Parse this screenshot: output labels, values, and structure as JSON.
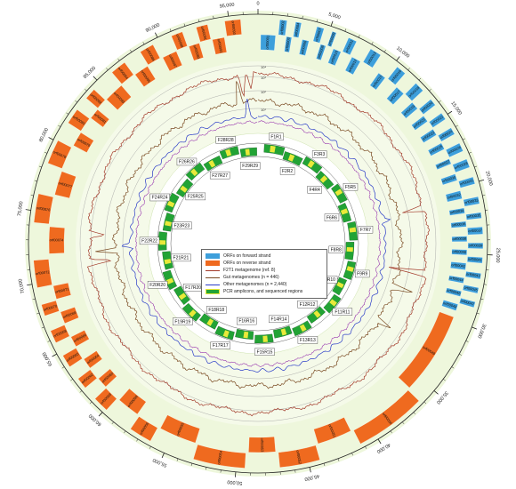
{
  "colors": {
    "background_ring": "#eef7dc",
    "inner_ring": "#f5fae9",
    "forward": "#3d9fdb",
    "reverse": "#ef6a1f",
    "f2t1": "#a33a2a",
    "gut": "#7a4a22",
    "other": "#2a3cc8",
    "purple": "#9b3db0",
    "pcr": "#22a335",
    "pcr_seq": "#e9e93a"
  },
  "genome": {
    "length": 97000,
    "major_ticks": [
      {
        "pos": 0,
        "label": "0"
      },
      {
        "pos": 5000,
        "label": "5,000"
      },
      {
        "pos": 10000,
        "label": "10,000"
      },
      {
        "pos": 15000,
        "label": "15,000"
      },
      {
        "pos": 20000,
        "label": "20,000"
      },
      {
        "pos": 25000,
        "label": "25,000"
      },
      {
        "pos": 30000,
        "label": "30,000"
      },
      {
        "pos": 35000,
        "label": "35,000"
      },
      {
        "pos": 40000,
        "label": "40,000"
      },
      {
        "pos": 45000,
        "label": "45,000"
      },
      {
        "pos": 50000,
        "label": "50,000"
      },
      {
        "pos": 55000,
        "label": "55,000"
      },
      {
        "pos": 60000,
        "label": "60,000"
      },
      {
        "pos": 65000,
        "label": "65,000"
      },
      {
        "pos": 70000,
        "label": "70,000"
      },
      {
        "pos": 75000,
        "label": "75,000"
      },
      {
        "pos": 80000,
        "label": "80,000"
      },
      {
        "pos": 85000,
        "label": "85,000"
      },
      {
        "pos": 90000,
        "label": "90,000"
      },
      {
        "pos": 95000,
        "label": "95,000"
      }
    ]
  },
  "orfs_forward": [
    {
      "name": "orf00001",
      "start": 200,
      "end": 1300,
      "lane": 0
    },
    {
      "name": "orf00002",
      "start": 1500,
      "end": 2000,
      "lane": 1
    },
    {
      "name": "orf00003",
      "start": 2100,
      "end": 2500,
      "lane": 0
    },
    {
      "name": "orf00004",
      "start": 2600,
      "end": 3000,
      "lane": 1
    },
    {
      "name": "orf00006",
      "start": 3300,
      "end": 3800,
      "lane": 0
    },
    {
      "name": "orf00007",
      "start": 4100,
      "end": 4600,
      "lane": 1
    },
    {
      "name": "orf00008",
      "start": 4700,
      "end": 5100,
      "lane": 0
    },
    {
      "name": "orf00009",
      "start": 5200,
      "end": 5500,
      "lane": 1
    },
    {
      "name": "orf00010",
      "start": 5700,
      "end": 6300,
      "lane": 0
    },
    {
      "name": "orf00011",
      "start": 6400,
      "end": 7000,
      "lane": 1
    },
    {
      "name": "orf00012",
      "start": 7200,
      "end": 7900,
      "lane": 0
    },
    {
      "name": "orf00013",
      "start": 8100,
      "end": 8900,
      "lane": 1
    },
    {
      "name": "orf00015",
      "start": 9500,
      "end": 10100,
      "lane": 0
    },
    {
      "name": "orf00016",
      "start": 10300,
      "end": 11000,
      "lane": 1
    },
    {
      "name": "orf00017",
      "start": 11200,
      "end": 11900,
      "lane": 0
    },
    {
      "name": "orf00018",
      "start": 12000,
      "end": 12700,
      "lane": 1
    },
    {
      "name": "orf00019",
      "start": 12800,
      "end": 13400,
      "lane": 0
    },
    {
      "name": "orf00020",
      "start": 13500,
      "end": 14000,
      "lane": 1
    },
    {
      "name": "orf00021",
      "start": 14100,
      "end": 14600,
      "lane": 0
    },
    {
      "name": "orf00022",
      "start": 14700,
      "end": 15200,
      "lane": 1
    },
    {
      "name": "orf00023",
      "start": 15300,
      "end": 15800,
      "lane": 0
    },
    {
      "name": "orf00024",
      "start": 15900,
      "end": 16400,
      "lane": 1
    },
    {
      "name": "orf00025",
      "start": 16500,
      "end": 17000,
      "lane": 0
    },
    {
      "name": "orf00026",
      "start": 17100,
      "end": 17700,
      "lane": 1
    },
    {
      "name": "orf00027",
      "start": 17800,
      "end": 18200,
      "lane": 0
    },
    {
      "name": "orf00028",
      "start": 18300,
      "end": 18900,
      "lane": 1
    },
    {
      "name": "orf00030",
      "start": 19000,
      "end": 19500,
      "lane": 0
    },
    {
      "name": "orf00031",
      "start": 19600,
      "end": 20100,
      "lane": 1
    },
    {
      "name": "orf00032",
      "start": 20300,
      "end": 20900,
      "lane": 0
    },
    {
      "name": "orf00033",
      "start": 21000,
      "end": 21500,
      "lane": 1
    },
    {
      "name": "orf00034",
      "start": 21600,
      "end": 22000,
      "lane": 0
    },
    {
      "name": "orf00035",
      "start": 22100,
      "end": 22500,
      "lane": 1
    },
    {
      "name": "orf00036",
      "start": 22600,
      "end": 23000,
      "lane": 0
    },
    {
      "name": "orf00037",
      "start": 23100,
      "end": 23600,
      "lane": 1
    },
    {
      "name": "orf00038",
      "start": 23700,
      "end": 24100,
      "lane": 0
    },
    {
      "name": "orf00039",
      "start": 24200,
      "end": 24600,
      "lane": 1
    },
    {
      "name": "orf00040",
      "start": 24700,
      "end": 25100,
      "lane": 0
    },
    {
      "name": "orf00041",
      "start": 25200,
      "end": 25600,
      "lane": 1
    },
    {
      "name": "orf00042",
      "start": 25700,
      "end": 26200,
      "lane": 0
    },
    {
      "name": "orf00043",
      "start": 26300,
      "end": 26700,
      "lane": 1
    },
    {
      "name": "orf00044",
      "start": 26800,
      "end": 27200,
      "lane": 0
    },
    {
      "name": "orf00045",
      "start": 27300,
      "end": 27700,
      "lane": 1
    },
    {
      "name": "orf00046",
      "start": 27800,
      "end": 28200,
      "lane": 0
    },
    {
      "name": "orf00047",
      "start": 28300,
      "end": 28700,
      "lane": 1
    },
    {
      "name": "orf00048",
      "start": 28800,
      "end": 29300,
      "lane": 0
    }
  ],
  "orfs_reverse": [
    {
      "name": "orf00049",
      "start": 29800,
      "end": 36000,
      "lane": 0
    },
    {
      "name": "orf00050",
      "start": 36200,
      "end": 41200,
      "lane": 1
    },
    {
      "name": "orf00051",
      "start": 41400,
      "end": 44000,
      "lane": 0
    },
    {
      "name": "orf00052",
      "start": 44200,
      "end": 47000,
      "lane": 1
    },
    {
      "name": "orf00053",
      "start": 47200,
      "end": 49200,
      "lane": 0
    },
    {
      "name": "orf00054",
      "start": 49400,
      "end": 53000,
      "lane": 1
    },
    {
      "name": "orf00055",
      "start": 53200,
      "end": 56000,
      "lane": 0
    },
    {
      "name": "orf00056",
      "start": 56200,
      "end": 57800,
      "lane": 1
    },
    {
      "name": "orf00058",
      "start": 58000,
      "end": 59700,
      "lane": 0
    },
    {
      "name": "orf00059",
      "start": 59900,
      "end": 61000,
      "lane": 1
    },
    {
      "name": "orf00060",
      "start": 61100,
      "end": 61900,
      "lane": 0
    },
    {
      "name": "orf00062",
      "start": 62000,
      "end": 62800,
      "lane": 1
    },
    {
      "name": "orf00064",
      "start": 62900,
      "end": 63700,
      "lane": 0
    },
    {
      "name": "orf00065",
      "start": 63800,
      "end": 64700,
      "lane": 1
    },
    {
      "name": "orf00066",
      "start": 64800,
      "end": 65600,
      "lane": 0
    },
    {
      "name": "orf00068",
      "start": 65700,
      "end": 66600,
      "lane": 1
    },
    {
      "name": "orf00069",
      "start": 66700,
      "end": 67600,
      "lane": 0
    },
    {
      "name": "orf00070",
      "start": 67700,
      "end": 68500,
      "lane": 1
    },
    {
      "name": "orf00071",
      "start": 68600,
      "end": 69600,
      "lane": 0
    },
    {
      "name": "orf00072",
      "start": 69700,
      "end": 71600,
      "lane": 1
    },
    {
      "name": "orf00074",
      "start": 72000,
      "end": 74000,
      "lane": 0
    },
    {
      "name": "orf00076",
      "start": 74200,
      "end": 76200,
      "lane": 1
    },
    {
      "name": "orf00077",
      "start": 76400,
      "end": 78200,
      "lane": 0
    },
    {
      "name": "orf00078",
      "start": 78400,
      "end": 80100,
      "lane": 1
    },
    {
      "name": "orf00079",
      "start": 80300,
      "end": 81400,
      "lane": 0
    },
    {
      "name": "orf00080",
      "start": 81500,
      "end": 82600,
      "lane": 1
    },
    {
      "name": "orf00081",
      "start": 82700,
      "end": 83500,
      "lane": 0
    },
    {
      "name": "orf00082",
      "start": 83600,
      "end": 84400,
      "lane": 1
    },
    {
      "name": "orf00083",
      "start": 84500,
      "end": 86000,
      "lane": 0
    },
    {
      "name": "orf00084",
      "start": 86100,
      "end": 87200,
      "lane": 1
    },
    {
      "name": "orf00085",
      "start": 87300,
      "end": 88400,
      "lane": 0
    },
    {
      "name": "orf00086",
      "start": 88500,
      "end": 89500,
      "lane": 1
    },
    {
      "name": "orf00087",
      "start": 89700,
      "end": 90800,
      "lane": 0
    },
    {
      "name": "orf00088",
      "start": 90900,
      "end": 91700,
      "lane": 1
    },
    {
      "name": "orf00089",
      "start": 91800,
      "end": 92600,
      "lane": 0
    },
    {
      "name": "orf00091",
      "start": 92700,
      "end": 93500,
      "lane": 1
    },
    {
      "name": "orf00092",
      "start": 93600,
      "end": 94500,
      "lane": 0
    },
    {
      "name": "orf00093",
      "start": 94700,
      "end": 95800,
      "lane": 1
    }
  ],
  "coverage_scale": [
    "10⁴",
    "10³",
    "10²",
    "10¹"
  ],
  "amplicons": [
    {
      "label": "F1R1",
      "start": 1000,
      "end": 4200
    },
    {
      "label": "F2R2",
      "start": 4400,
      "end": 7500
    },
    {
      "label": "F3R3",
      "start": 7800,
      "end": 10800
    },
    {
      "label": "F4R4",
      "start": 11000,
      "end": 14000
    },
    {
      "label": "F5R5",
      "start": 14300,
      "end": 17200
    },
    {
      "label": "F6R6",
      "start": 17500,
      "end": 20500
    },
    {
      "label": "F7R7",
      "start": 20800,
      "end": 23700
    },
    {
      "label": "F8R8",
      "start": 24000,
      "end": 26900
    },
    {
      "label": "F9R9",
      "start": 27200,
      "end": 30000
    },
    {
      "label": "F10R10",
      "start": 30300,
      "end": 33000
    },
    {
      "label": "F11R11",
      "start": 33300,
      "end": 36200
    },
    {
      "label": "F12R12",
      "start": 36500,
      "end": 39400
    },
    {
      "label": "F13R13",
      "start": 39700,
      "end": 42600
    },
    {
      "label": "F14R14",
      "start": 42900,
      "end": 45800
    },
    {
      "label": "F15R15",
      "start": 46100,
      "end": 49000
    },
    {
      "label": "F16R16",
      "start": 49300,
      "end": 52200
    },
    {
      "label": "F17R17",
      "start": 52500,
      "end": 55400
    },
    {
      "label": "F18R18",
      "start": 55700,
      "end": 58600
    },
    {
      "label": "F19R19",
      "start": 58900,
      "end": 61800
    },
    {
      "label": "F17R20",
      "start": 62100,
      "end": 65000
    },
    {
      "label": "F20R20",
      "start": 65300,
      "end": 68200
    },
    {
      "label": "F21R21",
      "start": 68500,
      "end": 71400
    },
    {
      "label": "F22R22",
      "start": 71700,
      "end": 74600
    },
    {
      "label": "F23R23",
      "start": 74900,
      "end": 77800
    },
    {
      "label": "F24R24",
      "start": 78100,
      "end": 81000
    },
    {
      "label": "F25R25",
      "start": 81300,
      "end": 84200
    },
    {
      "label": "F26R26",
      "start": 84500,
      "end": 87400
    },
    {
      "label": "F27R27",
      "start": 87700,
      "end": 90600
    },
    {
      "label": "F28R28",
      "start": 90900,
      "end": 93800
    },
    {
      "label": "F29R29",
      "start": 94100,
      "end": 96800
    }
  ],
  "legend": {
    "forward": "ORFs on forward strand",
    "reverse": "ORFs on reverse strand",
    "f2t1": "F2T1 metagenome (ref. 8)",
    "gut": "Gut metagenomes (n = 446)",
    "other": "Other metagenomes (n = 2,440)",
    "pcr": "PCR amplicons, and sequenced regions"
  }
}
